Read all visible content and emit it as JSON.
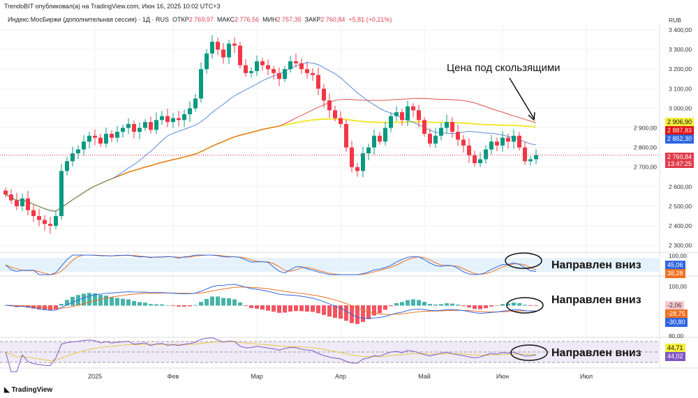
{
  "header": {
    "published": "TrendoBIT опубликовал(а) на TradingView.com, Июн 16, 2025 10:02 UTC+3",
    "symbol": "Индекс МосБиржи (дополнительная сессия) · 1Д · RUS",
    "open_label": "ОТКР",
    "open": "2 769,97",
    "high_label": "МАКС",
    "high": "2 776,56",
    "low_label": "МИН",
    "low": "2 757,35",
    "close_label": "ЗАКР",
    "close": "2 760,84",
    "change": "+5,81 (+0,21%)"
  },
  "currency": "RUB",
  "tags": {
    "ma_yellow": "2 906,90",
    "ma_red": "2 887,83",
    "ma_blue": "2 852,30",
    "price": "2 760,84",
    "timer": "13:47:25",
    "stoch_k": "45,06",
    "stoch_d": "38,28",
    "macd_hist": "-2,06",
    "macd_signal": "-28,75",
    "macd": "-30,80",
    "rsi_ma": "44,71",
    "rsi": "44,02"
  },
  "annotations": {
    "main": "Цена под скользящими",
    "stoch": "Направлен вниз",
    "macd": "Направлен вниз",
    "rsi": "Направлен вниз"
  },
  "brand": "TradingView",
  "colors": {
    "up": "#089981",
    "down": "#f23645",
    "ma_blue": "#5b8ae0",
    "ma_red": "#e0504a",
    "ma_yellow": "#f0e830"
  },
  "chart_data": {
    "type": "candlestick",
    "title": "Индекс МосБиржи (дополнительная сессия) · 1Д",
    "price_ticks": [
      "3 400,00",
      "3 300,00",
      "3 200,00",
      "3 100,00",
      "3 000,00",
      "2 900,00",
      "2 800,00",
      "2 700,00",
      "2 600,00",
      "2 500,00",
      "2 400,00",
      "2 300,00"
    ],
    "price_tick_values": [
      3400,
      3300,
      3200,
      3100,
      3000,
      2900,
      2800,
      2700,
      2600,
      2500,
      2400,
      2300
    ],
    "ylim": [
      2300,
      3400
    ],
    "x_ticks": [
      "2025",
      "Фев",
      "Мар",
      "Апр",
      "Май",
      "Июн",
      "Июл"
    ],
    "x_tick_index": [
      15,
      29,
      44,
      59,
      74,
      88,
      103
    ],
    "stoch_tick": "100,00",
    "macd_tick": "100,00",
    "rsi_tick": "80,00",
    "closes": [
      2560,
      2530,
      2500,
      2540,
      2480,
      2450,
      2430,
      2410,
      2400,
      2450,
      2680,
      2730,
      2770,
      2790,
      2830,
      2860,
      2850,
      2820,
      2870,
      2850,
      2880,
      2900,
      2920,
      2880,
      2900,
      2930,
      2890,
      2940,
      2960,
      2930,
      2950,
      2940,
      2970,
      3000,
      3050,
      3200,
      3280,
      3340,
      3300,
      3260,
      3330,
      3320,
      3220,
      3180,
      3190,
      3240,
      3220,
      3200,
      3180,
      3150,
      3200,
      3240,
      3230,
      3200,
      3180,
      3170,
      3100,
      3040,
      2990,
      2950,
      2920,
      2800,
      2700,
      2680,
      2770,
      2800,
      2860,
      2830,
      2900,
      2960,
      2980,
      2940,
      3010,
      2990,
      2940,
      2870,
      2820,
      2860,
      2900,
      2930,
      2880,
      2840,
      2810,
      2760,
      2720,
      2740,
      2790,
      2830,
      2810,
      2850,
      2830,
      2860,
      2800,
      2730,
      2740,
      2761
    ],
    "moving_averages": [
      {
        "name": "MA blue",
        "period": 20
      },
      {
        "name": "MA red",
        "period": 50
      },
      {
        "name": "MA yellow",
        "period": 100
      }
    ]
  }
}
